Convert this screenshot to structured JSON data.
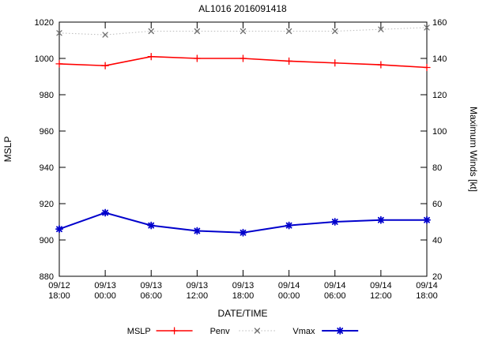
{
  "title": "AL1016 2016091418",
  "chart_data": {
    "type": "line",
    "title": "AL1016 2016091418",
    "xlabel": "DATE/TIME",
    "ylabel_left": "MSLP",
    "ylabel_right": "Maximum Winds [kt]",
    "grid": false,
    "legend_position": "bottom-center",
    "categories": [
      {
        "date": "09/12",
        "time": "18:00"
      },
      {
        "date": "09/13",
        "time": "00:00"
      },
      {
        "date": "09/13",
        "time": "06:00"
      },
      {
        "date": "09/13",
        "time": "12:00"
      },
      {
        "date": "09/13",
        "time": "18:00"
      },
      {
        "date": "09/14",
        "time": "00:00"
      },
      {
        "date": "09/14",
        "time": "06:00"
      },
      {
        "date": "09/14",
        "time": "12:00"
      },
      {
        "date": "09/14",
        "time": "18:00"
      }
    ],
    "y_left": {
      "min": 880,
      "max": 1020,
      "step": 20
    },
    "y_right": {
      "min": 20,
      "max": 160,
      "step": 20
    },
    "series": [
      {
        "name": "MSLP",
        "axis": "left",
        "color": "#ff0000",
        "marker": "plus",
        "line": "solid",
        "line_width": 1.6,
        "values": [
          997,
          996,
          1001,
          1000,
          1000,
          998.5,
          997.5,
          996.5,
          995
        ]
      },
      {
        "name": "Penv",
        "axis": "left",
        "color": "#707070",
        "line_color": "#bbbbbb",
        "marker": "cross",
        "line": "dotted",
        "line_width": 1,
        "values": [
          1014,
          1013,
          1015,
          1015,
          1015,
          1015,
          1015,
          1016,
          1017
        ]
      },
      {
        "name": "Vmax",
        "axis": "right",
        "color": "#0000cc",
        "marker": "asterisk",
        "line": "solid",
        "line_width": 2,
        "values": [
          46,
          55,
          48,
          45,
          44,
          48,
          50,
          51,
          51
        ]
      }
    ]
  }
}
